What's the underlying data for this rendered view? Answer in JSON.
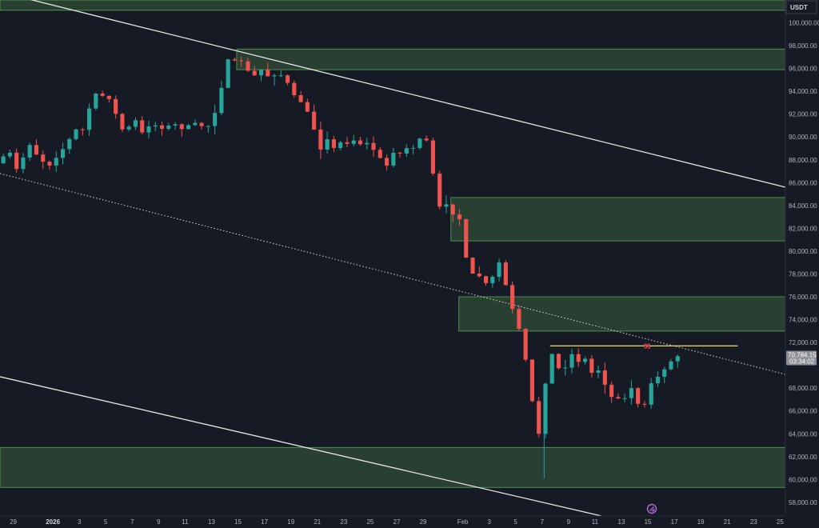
{
  "chart_data": {
    "type": "candlestick",
    "currency": "USDT",
    "y_range": [
      56800,
      102000
    ],
    "y_ticks": [
      {
        "value": 100000,
        "label": "100,000.00"
      },
      {
        "value": 98000,
        "label": "98,000.00"
      },
      {
        "value": 96000,
        "label": "96,000.00"
      },
      {
        "value": 94000,
        "label": "94,000.00"
      },
      {
        "value": 92000,
        "label": "92,000.00"
      },
      {
        "value": 90000,
        "label": "90,000.00"
      },
      {
        "value": 88000,
        "label": "88,000.00"
      },
      {
        "value": 86000,
        "label": "86,000.00"
      },
      {
        "value": 84000,
        "label": "84,000.00"
      },
      {
        "value": 82000,
        "label": "82,000.00"
      },
      {
        "value": 80000,
        "label": "80,000.00"
      },
      {
        "value": 78000,
        "label": "78,000.00"
      },
      {
        "value": 76000,
        "label": "76,000.00"
      },
      {
        "value": 74000,
        "label": "74,000.00"
      },
      {
        "value": 72000,
        "label": "72,000.00"
      },
      {
        "value": 68000,
        "label": "68,000.00"
      },
      {
        "value": 66000,
        "label": "66,000.00"
      },
      {
        "value": 64000,
        "label": "64,000.00"
      },
      {
        "value": 62000,
        "label": "62,000.00"
      },
      {
        "value": 60000,
        "label": "60,000.00"
      },
      {
        "value": 58000,
        "label": "58,000.00"
      }
    ],
    "x_range_days": [
      -4.0,
      55.4
    ],
    "x_ticks": [
      {
        "day": -3,
        "label": "29",
        "bold": false
      },
      {
        "day": 0,
        "label": "2026",
        "bold": true
      },
      {
        "day": 2,
        "label": "3",
        "bold": false
      },
      {
        "day": 4,
        "label": "5",
        "bold": false
      },
      {
        "day": 6,
        "label": "7",
        "bold": false
      },
      {
        "day": 8,
        "label": "9",
        "bold": false
      },
      {
        "day": 10,
        "label": "11",
        "bold": false
      },
      {
        "day": 12,
        "label": "13",
        "bold": false
      },
      {
        "day": 14,
        "label": "15",
        "bold": false
      },
      {
        "day": 16,
        "label": "17",
        "bold": false
      },
      {
        "day": 18,
        "label": "19",
        "bold": false
      },
      {
        "day": 20,
        "label": "21",
        "bold": false
      },
      {
        "day": 22,
        "label": "23",
        "bold": false
      },
      {
        "day": 24,
        "label": "25",
        "bold": false
      },
      {
        "day": 26,
        "label": "27",
        "bold": false
      },
      {
        "day": 28,
        "label": "29",
        "bold": false
      },
      {
        "day": 31,
        "label": "Feb",
        "bold": false
      },
      {
        "day": 33,
        "label": "3",
        "bold": false
      },
      {
        "day": 35,
        "label": "5",
        "bold": false
      },
      {
        "day": 37,
        "label": "7",
        "bold": false
      },
      {
        "day": 39,
        "label": "9",
        "bold": false
      },
      {
        "day": 41,
        "label": "11",
        "bold": false
      },
      {
        "day": 43,
        "label": "13",
        "bold": false
      },
      {
        "day": 45,
        "label": "15",
        "bold": false
      },
      {
        "day": 47,
        "label": "17",
        "bold": false
      },
      {
        "day": 49,
        "label": "19",
        "bold": false
      },
      {
        "day": 51,
        "label": "21",
        "bold": false
      },
      {
        "day": 53,
        "label": "23",
        "bold": false
      },
      {
        "day": 55,
        "label": "25",
        "bold": false
      }
    ],
    "path_points": [
      [
        -4.0,
        87700
      ],
      [
        -3.5,
        88300
      ],
      [
        -3.3,
        90200
      ],
      [
        -2.9,
        88100
      ],
      [
        -2.5,
        87200
      ],
      [
        -1.9,
        88400
      ],
      [
        -1.5,
        89300
      ],
      [
        -1.1,
        88600
      ],
      [
        -0.6,
        87900
      ],
      [
        0.0,
        87500
      ],
      [
        0.6,
        88300
      ],
      [
        1.1,
        89100
      ],
      [
        1.6,
        90000
      ],
      [
        2.2,
        91000
      ],
      [
        2.6,
        90500
      ],
      [
        3.0,
        92500
      ],
      [
        3.4,
        94200
      ],
      [
        3.7,
        93000
      ],
      [
        4.2,
        94000
      ],
      [
        4.6,
        93100
      ],
      [
        4.9,
        92300
      ],
      [
        5.3,
        91200
      ],
      [
        5.6,
        90400
      ],
      [
        6.0,
        90900
      ],
      [
        6.3,
        91800
      ],
      [
        6.6,
        91300
      ],
      [
        7.0,
        90400
      ],
      [
        7.4,
        90800
      ],
      [
        7.8,
        91300
      ],
      [
        8.3,
        90600
      ],
      [
        8.8,
        90900
      ],
      [
        9.4,
        91200
      ],
      [
        10.0,
        90700
      ],
      [
        10.6,
        91100
      ],
      [
        11.2,
        91300
      ],
      [
        11.8,
        90600
      ],
      [
        12.3,
        91500
      ],
      [
        12.8,
        93000
      ],
      [
        13.2,
        95600
      ],
      [
        13.5,
        96800
      ],
      [
        13.8,
        97000
      ],
      [
        14.2,
        96400
      ],
      [
        14.6,
        96700
      ],
      [
        15.0,
        95800
      ],
      [
        15.5,
        95400
      ],
      [
        16.0,
        95900
      ],
      [
        16.6,
        95200
      ],
      [
        17.2,
        95500
      ],
      [
        17.8,
        95300
      ],
      [
        18.3,
        93900
      ],
      [
        18.8,
        93300
      ],
      [
        19.3,
        92700
      ],
      [
        19.8,
        91500
      ],
      [
        20.2,
        89800
      ],
      [
        20.6,
        88600
      ],
      [
        21.0,
        89800
      ],
      [
        21.4,
        88900
      ],
      [
        21.9,
        89600
      ],
      [
        22.4,
        89300
      ],
      [
        22.9,
        89800
      ],
      [
        23.4,
        89300
      ],
      [
        23.9,
        89600
      ],
      [
        24.4,
        89000
      ],
      [
        24.9,
        88400
      ],
      [
        25.4,
        87200
      ],
      [
        25.9,
        88700
      ],
      [
        26.4,
        88300
      ],
      [
        26.8,
        89300
      ],
      [
        27.3,
        88600
      ],
      [
        27.8,
        89700
      ],
      [
        28.3,
        90100
      ],
      [
        28.7,
        89300
      ],
      [
        29.0,
        86800
      ],
      [
        29.4,
        84400
      ],
      [
        29.7,
        82900
      ],
      [
        30.0,
        84100
      ],
      [
        30.3,
        82700
      ],
      [
        30.7,
        83700
      ],
      [
        31.0,
        82800
      ],
      [
        31.3,
        80900
      ],
      [
        31.6,
        78700
      ],
      [
        31.9,
        77500
      ],
      [
        32.2,
        79100
      ],
      [
        32.5,
        77800
      ],
      [
        32.9,
        76700
      ],
      [
        33.2,
        78200
      ],
      [
        33.6,
        77600
      ],
      [
        34.0,
        79000
      ],
      [
        34.4,
        77500
      ],
      [
        34.8,
        75600
      ],
      [
        35.1,
        74600
      ],
      [
        35.4,
        73700
      ],
      [
        35.7,
        72200
      ],
      [
        36.0,
        70500
      ],
      [
        36.3,
        68200
      ],
      [
        36.6,
        66200
      ],
      [
        36.9,
        63800
      ],
      [
        37.2,
        64400
      ],
      [
        37.5,
        68400
      ],
      [
        37.8,
        70600
      ],
      [
        38.1,
        71200
      ],
      [
        38.4,
        70000
      ],
      [
        38.8,
        69000
      ],
      [
        39.2,
        70600
      ],
      [
        39.6,
        71100
      ],
      [
        40.0,
        70300
      ],
      [
        40.4,
        70900
      ],
      [
        40.8,
        69600
      ],
      [
        41.2,
        69100
      ],
      [
        41.6,
        69700
      ],
      [
        42.0,
        68300
      ],
      [
        42.4,
        67000
      ],
      [
        42.8,
        67900
      ],
      [
        43.2,
        66300
      ],
      [
        43.6,
        67400
      ],
      [
        44.0,
        68000
      ],
      [
        44.4,
        66800
      ],
      [
        44.8,
        66100
      ],
      [
        45.2,
        67000
      ],
      [
        45.6,
        68900
      ],
      [
        46.0,
        69000
      ],
      [
        46.4,
        69500
      ],
      [
        46.8,
        70100
      ],
      [
        47.2,
        70600
      ],
      [
        47.5,
        70800
      ]
    ],
    "candles_per_day": 2,
    "zones": [
      {
        "x_start_day": -4.0,
        "x_end_day": 55.4,
        "low": 101100,
        "high": 102000
      },
      {
        "x_start_day": 13.9,
        "x_end_day": 55.4,
        "low": 95900,
        "high": 97700
      },
      {
        "x_start_day": 30.1,
        "x_end_day": 55.4,
        "low": 80900,
        "high": 84700
      },
      {
        "x_start_day": 30.7,
        "x_end_day": 55.4,
        "low": 73000,
        "high": 76000
      },
      {
        "x_start_day": -4.0,
        "x_end_day": 55.4,
        "low": 59300,
        "high": 62800
      }
    ],
    "channel_upper": [
      [
        -4.0,
        102700
      ],
      [
        55.4,
        85600
      ]
    ],
    "channel_lower": [
      [
        -4.0,
        69000
      ],
      [
        41.5,
        56800
      ]
    ],
    "channel_mid": [
      [
        -4.0,
        86800
      ],
      [
        55.4,
        69200
      ]
    ],
    "target_line": {
      "x_start_day": 37.6,
      "x_end_day": 51.8,
      "value": 71700,
      "label": "$$"
    },
    "last_price": {
      "label": "70,784.15",
      "countdown": "03:34:02",
      "value": 70784.15
    }
  }
}
